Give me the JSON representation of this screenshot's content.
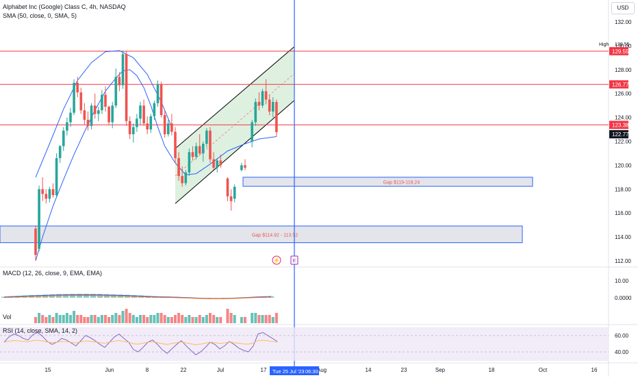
{
  "header": {
    "title": "Alphabet Inc (Google) Class C, 4h, NASDAQ",
    "indicator": "SMA (50, close, 0, SMA, 5)"
  },
  "currency_button": "USD",
  "macd_label": "MACD (12, 26, close, 9, EMA, EMA)",
  "vol_label": "Vol",
  "rsi_label": "RSI (14, close, SMA, 14, 2)",
  "colors": {
    "up": "#26a69a",
    "down": "#ef5350",
    "level_line": "#f23645",
    "gap_border": "#2962ff",
    "gap_fill": "#d1d4dc",
    "channel_fill": "#c8e6c9",
    "sma": "#2962ff",
    "rsi_band": "#ede7f6",
    "cursor": "#2962ff",
    "rsi_line": "#7e57c2"
  },
  "price_axis": {
    "ticks": [
      "132.00",
      "130.00",
      "128.00",
      "126.00",
      "124.00",
      "122.00",
      "120.00",
      "118.00",
      "116.00",
      "114.00",
      "112.00"
    ]
  },
  "price_labels": {
    "high_label": "High",
    "high_value": "129.55",
    "level1": "129.55",
    "level2": "126.77",
    "level3": "123.38",
    "last": "122.77"
  },
  "macd_axis": [
    "10.00",
    "0.0000"
  ],
  "rsi_axis": [
    "60.00",
    "40.00"
  ],
  "time_axis": [
    "15",
    "Jun",
    "8",
    "22",
    "Jul",
    "17",
    "Aug",
    "14",
    "23",
    "Sep",
    "18",
    "Oct",
    "16"
  ],
  "time_cursor": {
    "date": "Tue 25 Jul '23",
    "time": "06:30"
  },
  "gap_zones": [
    {
      "label": "Gap $119-118.24"
    },
    {
      "label": "Gap $114.92 - 113.52"
    }
  ],
  "event_icons": {
    "dividend": "lightning-icon",
    "earnings": "E"
  },
  "chart_data": {
    "type": "candlestick",
    "symbol": "Alphabet Inc (Google) Class C, 4h, NASDAQ",
    "ylim": [
      111.5,
      133.0
    ],
    "ohlc": [
      [
        114.7,
        114.9,
        112.0,
        112.5
      ],
      [
        113.0,
        118.3,
        112.8,
        118.0
      ],
      [
        118.0,
        119.0,
        117.0,
        117.6
      ],
      [
        117.6,
        118.0,
        116.8,
        117.2
      ],
      [
        117.2,
        118.2,
        116.9,
        118.0
      ],
      [
        118.0,
        118.5,
        117.3,
        117.5
      ],
      [
        117.5,
        121.0,
        117.3,
        120.6
      ],
      [
        120.6,
        121.7,
        120.2,
        121.6
      ],
      [
        121.6,
        123.2,
        121.2,
        122.9
      ],
      [
        122.9,
        124.0,
        122.5,
        123.6
      ],
      [
        123.6,
        124.8,
        123.2,
        124.4
      ],
      [
        124.4,
        127.2,
        124.2,
        126.9
      ],
      [
        126.9,
        127.4,
        125.7,
        126.1
      ],
      [
        126.1,
        126.5,
        124.3,
        124.6
      ],
      [
        124.6,
        125.2,
        123.4,
        123.8
      ],
      [
        123.8,
        124.5,
        122.9,
        123.3
      ],
      [
        123.3,
        125.2,
        123.0,
        125.0
      ],
      [
        125.0,
        126.0,
        123.9,
        124.3
      ],
      [
        124.3,
        124.9,
        123.7,
        124.6
      ],
      [
        124.6,
        126.3,
        124.3,
        125.9
      ],
      [
        125.9,
        126.6,
        124.5,
        124.9
      ],
      [
        124.9,
        125.0,
        123.4,
        123.6
      ],
      [
        123.6,
        125.3,
        123.1,
        125.0
      ],
      [
        125.0,
        128.1,
        124.8,
        127.4
      ],
      [
        127.4,
        127.8,
        126.2,
        126.7
      ],
      [
        126.7,
        129.6,
        126.4,
        129.3
      ],
      [
        129.3,
        129.55,
        123.3,
        123.7
      ],
      [
        123.7,
        124.1,
        122.2,
        122.6
      ],
      [
        122.6,
        123.5,
        121.9,
        123.2
      ],
      [
        123.2,
        124.3,
        122.8,
        123.9
      ],
      [
        123.9,
        125.3,
        123.4,
        125.0
      ],
      [
        125.0,
        125.5,
        123.3,
        123.5
      ],
      [
        123.5,
        124.1,
        122.6,
        123.0
      ],
      [
        123.0,
        124.3,
        122.7,
        124.1
      ],
      [
        124.1,
        125.4,
        123.8,
        125.2
      ],
      [
        125.2,
        127.1,
        124.9,
        126.8
      ],
      [
        126.8,
        127.0,
        124.0,
        124.2
      ],
      [
        124.2,
        124.6,
        122.3,
        122.6
      ],
      [
        122.6,
        123.8,
        122.4,
        123.5
      ],
      [
        123.5,
        124.3,
        122.5,
        122.8
      ],
      [
        122.8,
        123.2,
        120.2,
        120.6
      ],
      [
        120.6,
        121.1,
        118.7,
        119.1
      ],
      [
        119.1,
        119.9,
        118.2,
        118.5
      ],
      [
        118.5,
        119.6,
        118.3,
        119.4
      ],
      [
        119.4,
        121.4,
        119.1,
        121.1
      ],
      [
        121.1,
        121.6,
        120.4,
        120.7
      ],
      [
        120.7,
        121.9,
        120.5,
        121.6
      ],
      [
        121.6,
        122.6,
        120.8,
        121.0
      ],
      [
        121.0,
        122.0,
        120.3,
        121.8
      ],
      [
        121.8,
        123.1,
        121.5,
        122.9
      ],
      [
        122.9,
        123.2,
        120.2,
        120.5
      ],
      [
        120.5,
        121.1,
        119.6,
        119.8
      ],
      [
        119.8,
        120.6,
        119.4,
        120.4
      ],
      [
        120.4,
        120.9,
        119.8,
        120.0
      ],
      [
        null,
        null,
        null,
        null
      ],
      [
        118.9,
        119.0,
        117.0,
        117.4
      ],
      [
        117.4,
        118.0,
        116.2,
        117.0
      ],
      [
        117.2,
        118.4,
        116.9,
        118.2
      ],
      [
        null,
        null,
        null,
        null
      ],
      [
        119.6,
        120.2,
        119.5,
        120.0
      ],
      [
        120.0,
        120.5,
        119.6,
        119.8
      ],
      [
        null,
        null,
        null,
        null
      ],
      [
        122.0,
        123.8,
        121.5,
        123.6
      ],
      [
        123.6,
        125.6,
        123.3,
        125.3
      ],
      [
        125.3,
        126.1,
        124.6,
        125.0
      ],
      [
        125.0,
        126.4,
        124.8,
        126.2
      ],
      [
        126.2,
        127.2,
        125.1,
        125.5
      ],
      [
        125.5,
        125.9,
        124.2,
        124.5
      ],
      [
        124.5,
        125.7,
        124.0,
        125.3
      ],
      [
        125.3,
        125.5,
        122.4,
        122.77
      ]
    ],
    "sma": [
      [
        112.0,
        0
      ],
      [
        114.0,
        2
      ],
      [
        116.6,
        5
      ],
      [
        118.8,
        8
      ],
      [
        120.9,
        11
      ],
      [
        122.8,
        14
      ],
      [
        124.6,
        17
      ],
      [
        126.2,
        20
      ],
      [
        127.3,
        23
      ],
      [
        127.9,
        25
      ],
      [
        128.0,
        27
      ],
      [
        127.5,
        29
      ],
      [
        126.5,
        31
      ],
      [
        125.0,
        33
      ],
      [
        123.2,
        35
      ],
      [
        121.6,
        37
      ],
      [
        120.2,
        40
      ],
      [
        119.2,
        43
      ],
      [
        119.3,
        46
      ],
      [
        120.1,
        50
      ],
      [
        121.2,
        55
      ],
      [
        121.8,
        60
      ],
      [
        122.2,
        64
      ],
      [
        122.4,
        69
      ]
    ],
    "sma_upper_arc": [
      [
        119.0,
        0
      ],
      [
        121.8,
        4
      ],
      [
        124.7,
        8
      ],
      [
        127.1,
        12
      ],
      [
        128.6,
        16
      ],
      [
        129.5,
        20
      ],
      [
        129.6,
        24
      ],
      [
        129.0,
        28
      ],
      [
        127.6,
        32
      ],
      [
        125.3,
        36
      ],
      [
        123.2,
        39
      ]
    ],
    "horizontal_levels": [
      129.55,
      126.77,
      123.38
    ],
    "channel": {
      "upper_start": [
        121.4,
        40
      ],
      "upper_end": [
        129.9,
        74
      ],
      "lower_start": [
        116.8,
        40
      ],
      "lower_end": [
        125.4,
        74
      ]
    },
    "gaps": [
      {
        "from": 119.0,
        "to": 118.24
      },
      {
        "from": 114.92,
        "to": 113.52
      }
    ],
    "volume": [
      3,
      5,
      4,
      3,
      4,
      3,
      5,
      4,
      4,
      5,
      4,
      6,
      4,
      4,
      3,
      3,
      4,
      4,
      3,
      4,
      4,
      3,
      4,
      5,
      4,
      6,
      7,
      5,
      4,
      3,
      4,
      4,
      3,
      4,
      4,
      5,
      5,
      4,
      3,
      3,
      4,
      5,
      4,
      3,
      4,
      3,
      3,
      4,
      3,
      4,
      5,
      4,
      3,
      3,
      0,
      7,
      5,
      4,
      0,
      3,
      3,
      0,
      5,
      5,
      4,
      4,
      4,
      4,
      3,
      5
    ],
    "macd": [
      1,
      1.5,
      1.8,
      2.2,
      2.5,
      2.7,
      3,
      3.3,
      3.5,
      3.6,
      3.7,
      3.8,
      3.8,
      3.7,
      3.6,
      3.4,
      3.2,
      3.0,
      2.8,
      2.5,
      2.2,
      1.8,
      1.5,
      1.2,
      1.0,
      0.8,
      0.5,
      0.2,
      -0.2,
      -0.5,
      -0.7,
      -0.8,
      -0.7,
      -0.5,
      -0.2,
      0.2,
      0.6,
      1.0,
      1.4,
      1.6
    ],
    "rsi": [
      55,
      62,
      66,
      64,
      60,
      58,
      65,
      68,
      63,
      56,
      52,
      55,
      60,
      58,
      54,
      50,
      57,
      64,
      61,
      57,
      52,
      48,
      55,
      62,
      66,
      60,
      55,
      45,
      42,
      48,
      55,
      58,
      52,
      45,
      40,
      46,
      52,
      57,
      50,
      44,
      38,
      42,
      48,
      55,
      52,
      46,
      50,
      56,
      52,
      47,
      44,
      42,
      50,
      66,
      68,
      64,
      60,
      56
    ],
    "time_ticks": [
      "15",
      "Jun",
      "8",
      "22",
      "Jul",
      "17",
      "Aug",
      "14",
      "23",
      "Sep",
      "18",
      "Oct",
      "16"
    ]
  }
}
